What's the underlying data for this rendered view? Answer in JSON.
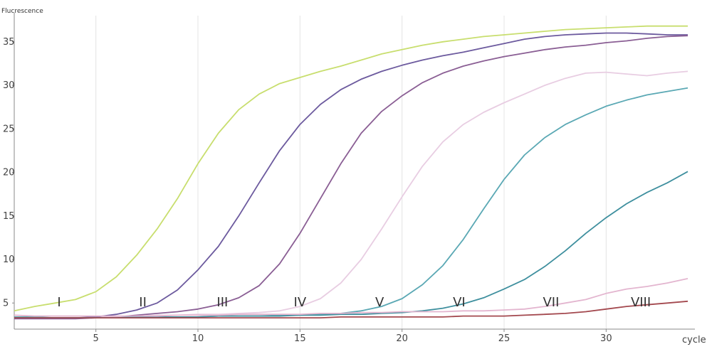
{
  "chart_data": {
    "type": "line",
    "title": "",
    "ylabel": "Flucrescence",
    "xlabel": "cycle",
    "xlim": [
      1,
      34
    ],
    "ylim": [
      2,
      38
    ],
    "x_ticks": [
      5,
      10,
      15,
      20,
      25,
      30
    ],
    "y_ticks": [
      5,
      10,
      15,
      20,
      25,
      30,
      35
    ],
    "grid": "vertical",
    "series": [
      {
        "color": "#c8de6e",
        "x": [
          1,
          2,
          3,
          4,
          5,
          6,
          7,
          8,
          9,
          10,
          11,
          12,
          13,
          14,
          15,
          16,
          17,
          18,
          19,
          20,
          21,
          22,
          23,
          24,
          25,
          26,
          27,
          28,
          29,
          30,
          31,
          32,
          33,
          34
        ],
        "y": [
          4.1,
          4.6,
          5.0,
          5.4,
          6.3,
          8.0,
          10.5,
          13.5,
          17.0,
          21.0,
          24.5,
          27.2,
          29.0,
          30.2,
          30.9,
          31.6,
          32.2,
          32.9,
          33.6,
          34.1,
          34.6,
          35.0,
          35.3,
          35.6,
          35.8,
          36.0,
          36.2,
          36.4,
          36.5,
          36.6,
          36.7,
          36.8,
          36.8,
          36.8
        ]
      },
      {
        "color": "#6c5a9e",
        "x": [
          1,
          2,
          3,
          4,
          5,
          6,
          7,
          8,
          9,
          10,
          11,
          12,
          13,
          14,
          15,
          16,
          17,
          18,
          19,
          20,
          21,
          22,
          23,
          24,
          25,
          26,
          27,
          28,
          29,
          30,
          31,
          32,
          33,
          34
        ],
        "y": [
          3.4,
          3.3,
          3.3,
          3.3,
          3.4,
          3.7,
          4.2,
          5.0,
          6.5,
          8.8,
          11.5,
          15.0,
          18.8,
          22.5,
          25.5,
          27.8,
          29.5,
          30.7,
          31.6,
          32.3,
          32.9,
          33.4,
          33.8,
          34.3,
          34.8,
          35.3,
          35.6,
          35.8,
          35.9,
          36.0,
          36.0,
          35.9,
          35.8,
          35.8
        ]
      },
      {
        "color": "#8a5e94",
        "x": [
          1,
          2,
          3,
          4,
          5,
          6,
          7,
          8,
          9,
          10,
          11,
          12,
          13,
          14,
          15,
          16,
          17,
          18,
          19,
          20,
          21,
          22,
          23,
          24,
          25,
          26,
          27,
          28,
          29,
          30,
          31,
          32,
          33,
          34
        ],
        "y": [
          3.2,
          3.2,
          3.2,
          3.2,
          3.3,
          3.4,
          3.6,
          3.8,
          4.0,
          4.3,
          4.8,
          5.6,
          7.0,
          9.5,
          13.0,
          17.0,
          21.0,
          24.5,
          27.0,
          28.8,
          30.3,
          31.4,
          32.2,
          32.8,
          33.3,
          33.7,
          34.1,
          34.4,
          34.6,
          34.9,
          35.1,
          35.4,
          35.6,
          35.7
        ]
      },
      {
        "color": "#e8cde2",
        "x": [
          1,
          2,
          3,
          4,
          5,
          6,
          7,
          8,
          9,
          10,
          11,
          12,
          13,
          14,
          15,
          16,
          17,
          18,
          19,
          20,
          21,
          22,
          23,
          24,
          25,
          26,
          27,
          28,
          29,
          30,
          31,
          32,
          33,
          34
        ],
        "y": [
          3.3,
          3.3,
          3.3,
          3.3,
          3.3,
          3.4,
          3.5,
          3.6,
          3.6,
          3.7,
          3.7,
          3.8,
          3.9,
          4.1,
          4.6,
          5.5,
          7.3,
          10.0,
          13.5,
          17.2,
          20.7,
          23.5,
          25.5,
          26.9,
          28.0,
          29.0,
          30.0,
          30.8,
          31.4,
          31.5,
          31.3,
          31.1,
          31.4,
          31.6
        ]
      },
      {
        "color": "#5aa8b4",
        "x": [
          1,
          2,
          3,
          4,
          5,
          6,
          7,
          8,
          9,
          10,
          11,
          12,
          13,
          14,
          15,
          16,
          17,
          18,
          19,
          20,
          21,
          22,
          23,
          24,
          25,
          26,
          27,
          28,
          29,
          30,
          31,
          32,
          33,
          34
        ],
        "y": [
          3.4,
          3.4,
          3.3,
          3.3,
          3.3,
          3.3,
          3.4,
          3.4,
          3.4,
          3.4,
          3.5,
          3.5,
          3.5,
          3.6,
          3.6,
          3.7,
          3.8,
          4.1,
          4.6,
          5.5,
          7.1,
          9.3,
          12.3,
          15.8,
          19.2,
          22.0,
          24.0,
          25.5,
          26.6,
          27.6,
          28.3,
          28.9,
          29.3,
          29.7
        ]
      },
      {
        "color": "#3e8f9e",
        "x": [
          1,
          2,
          3,
          4,
          5,
          6,
          7,
          8,
          9,
          10,
          11,
          12,
          13,
          14,
          15,
          16,
          17,
          18,
          19,
          20,
          21,
          22,
          23,
          24,
          25,
          26,
          27,
          28,
          29,
          30,
          31,
          32,
          33,
          34
        ],
        "y": [
          3.3,
          3.3,
          3.3,
          3.3,
          3.3,
          3.3,
          3.4,
          3.4,
          3.4,
          3.4,
          3.5,
          3.5,
          3.5,
          3.5,
          3.6,
          3.6,
          3.7,
          3.7,
          3.8,
          3.9,
          4.1,
          4.4,
          4.9,
          5.6,
          6.6,
          7.7,
          9.2,
          11.0,
          13.0,
          14.8,
          16.4,
          17.7,
          18.8,
          20.1
        ]
      },
      {
        "color": "#e3b5cf",
        "x": [
          1,
          2,
          3,
          4,
          5,
          6,
          7,
          8,
          9,
          10,
          11,
          12,
          13,
          14,
          15,
          16,
          17,
          18,
          19,
          20,
          21,
          22,
          23,
          24,
          25,
          26,
          27,
          28,
          29,
          30,
          31,
          32,
          33,
          34
        ],
        "y": [
          3.6,
          3.5,
          3.5,
          3.5,
          3.5,
          3.5,
          3.5,
          3.5,
          3.6,
          3.6,
          3.6,
          3.7,
          3.7,
          3.7,
          3.7,
          3.8,
          3.8,
          3.9,
          3.9,
          4.0,
          4.0,
          4.0,
          4.1,
          4.1,
          4.2,
          4.3,
          4.6,
          5.0,
          5.4,
          6.1,
          6.6,
          6.9,
          7.3,
          7.8
        ]
      },
      {
        "color": "#a3484e",
        "x": [
          1,
          2,
          3,
          4,
          5,
          6,
          7,
          8,
          9,
          10,
          11,
          12,
          13,
          14,
          15,
          16,
          17,
          18,
          19,
          20,
          21,
          22,
          23,
          24,
          25,
          26,
          27,
          28,
          29,
          30,
          31,
          32,
          33,
          34
        ],
        "y": [
          3.3,
          3.3,
          3.3,
          3.3,
          3.3,
          3.3,
          3.3,
          3.3,
          3.3,
          3.3,
          3.3,
          3.3,
          3.3,
          3.3,
          3.3,
          3.3,
          3.4,
          3.4,
          3.4,
          3.4,
          3.4,
          3.4,
          3.5,
          3.5,
          3.5,
          3.6,
          3.7,
          3.8,
          4.0,
          4.3,
          4.6,
          4.8,
          5.0,
          5.2
        ]
      }
    ],
    "annotations": [
      {
        "text": "I",
        "x": 3.2,
        "y": 4.6
      },
      {
        "text": "II",
        "x": 7.3,
        "y": 4.6
      },
      {
        "text": "III",
        "x": 11.2,
        "y": 4.6
      },
      {
        "text": "IV",
        "x": 15.0,
        "y": 4.6
      },
      {
        "text": "V",
        "x": 18.9,
        "y": 4.6
      },
      {
        "text": "VI",
        "x": 22.8,
        "y": 4.6
      },
      {
        "text": "VII",
        "x": 27.3,
        "y": 4.6
      },
      {
        "text": "VIII",
        "x": 31.7,
        "y": 4.6
      }
    ]
  }
}
